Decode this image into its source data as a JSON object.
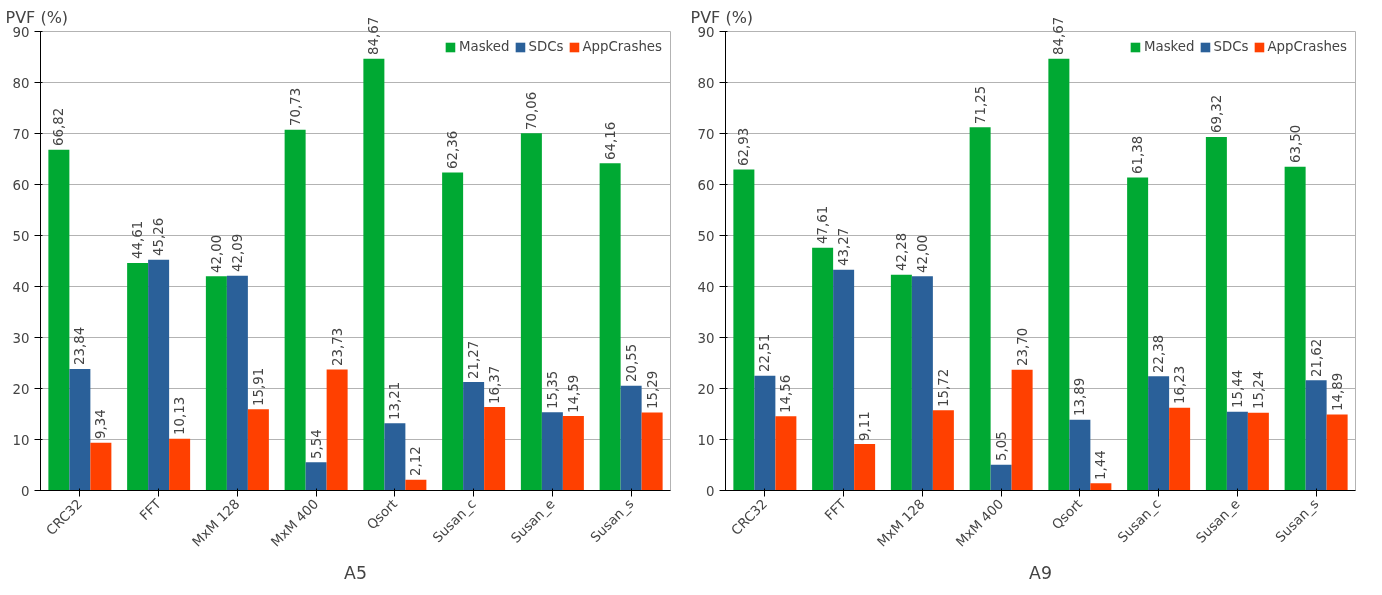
{
  "chart_data": [
    {
      "type": "bar",
      "ylabel": "PVF (%)",
      "xlabel": "A5",
      "categories": [
        "CRC32",
        "FFT",
        "MxM 128",
        "MxM 400",
        "Qsort",
        "Susan_c",
        "Susan_e",
        "Susan_s"
      ],
      "ylim": [
        0,
        90
      ],
      "yticks": [
        0,
        10,
        20,
        30,
        40,
        50,
        60,
        70,
        80,
        90
      ],
      "grid": "y",
      "legend": "top right",
      "series": [
        {
          "name": "Masked",
          "color": "#00a933",
          "values": [
            66.82,
            44.61,
            42.0,
            70.73,
            84.67,
            62.36,
            70.06,
            64.16
          ],
          "value_labels": [
            "66,82",
            "44,61",
            "42,00",
            "70,73",
            "84,67",
            "62,36",
            "70,06",
            "64,16"
          ]
        },
        {
          "name": "SDCs",
          "color": "#2a6099",
          "values": [
            23.84,
            45.26,
            42.09,
            5.54,
            13.21,
            21.27,
            15.35,
            20.55
          ],
          "value_labels": [
            "23,84",
            "45,26",
            "42,09",
            "5,54",
            "13,21",
            "21,27",
            "15,35",
            "20,55"
          ]
        },
        {
          "name": "AppCrashes",
          "color": "#ff4000",
          "values": [
            9.34,
            10.13,
            15.91,
            23.73,
            2.12,
            16.37,
            14.59,
            15.29
          ],
          "value_labels": [
            "9,34",
            "10,13",
            "15,91",
            "23,73",
            "2,12",
            "16,37",
            "14,59",
            "15,29"
          ]
        }
      ]
    },
    {
      "type": "bar",
      "ylabel": "PVF (%)",
      "xlabel": "A9",
      "categories": [
        "CRC32",
        "FFT",
        "MxM 128",
        "MxM 400",
        "Qsort",
        "Susan_c",
        "Susan_e",
        "Susan_s"
      ],
      "ylim": [
        0,
        90
      ],
      "yticks": [
        0,
        10,
        20,
        30,
        40,
        50,
        60,
        70,
        80,
        90
      ],
      "grid": "y",
      "legend": "top right",
      "series": [
        {
          "name": "Masked",
          "color": "#00a933",
          "values": [
            62.93,
            47.61,
            42.28,
            71.25,
            84.67,
            61.38,
            69.32,
            63.5
          ],
          "value_labels": [
            "62,93",
            "47,61",
            "42,28",
            "71,25",
            "84,67",
            "61,38",
            "69,32",
            "63,50"
          ]
        },
        {
          "name": "SDCs",
          "color": "#2a6099",
          "values": [
            22.51,
            43.27,
            42.0,
            5.05,
            13.89,
            22.38,
            15.44,
            21.62
          ],
          "value_labels": [
            "22,51",
            "43,27",
            "42,00",
            "5,05",
            "13,89",
            "22,38",
            "15,44",
            "21,62"
          ]
        },
        {
          "name": "AppCrashes",
          "color": "#ff4000",
          "values": [
            14.56,
            9.11,
            15.72,
            23.7,
            1.44,
            16.23,
            15.24,
            14.89
          ],
          "value_labels": [
            "14,56",
            "9,11",
            "15,72",
            "23,70",
            "1,44",
            "16,23",
            "15,24",
            "14,89"
          ]
        }
      ]
    }
  ]
}
